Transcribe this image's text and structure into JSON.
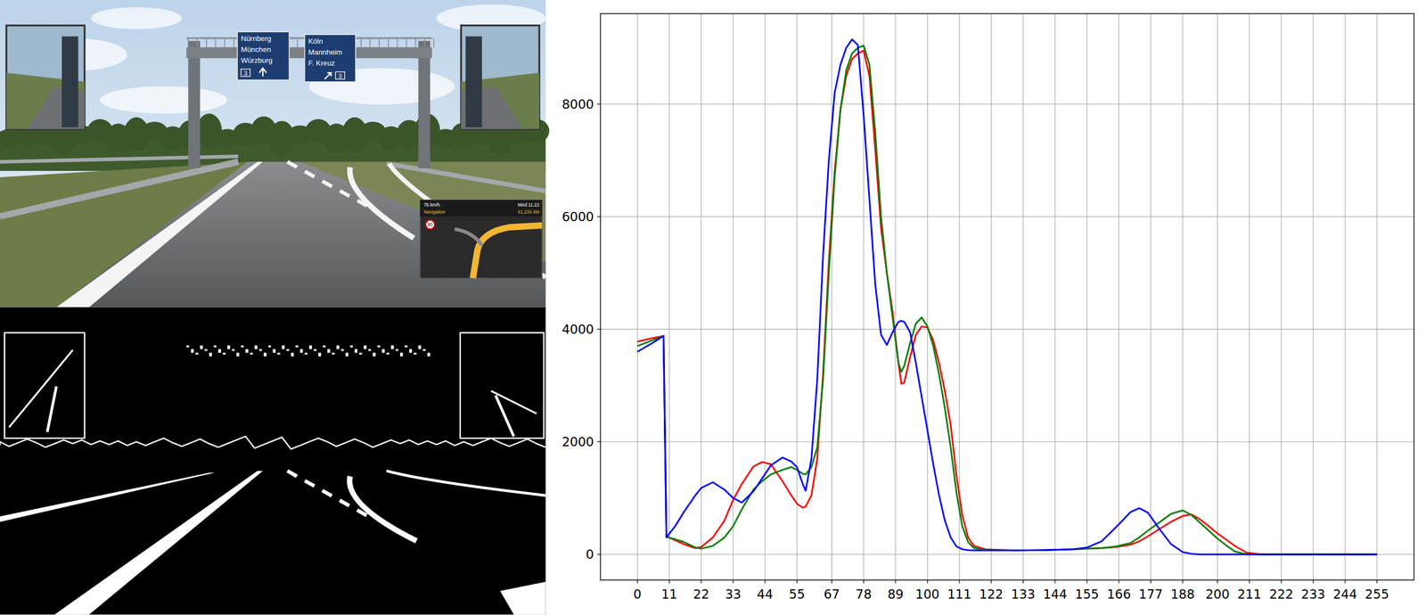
{
  "screenshot": {
    "signs": [
      {
        "lines": [
          "Nürnberg",
          "München",
          "Würzburg"
        ],
        "exit": "3"
      },
      {
        "lines": [
          "Köln",
          "Mannheim",
          "F. Kreuz"
        ],
        "exit": "3"
      }
    ],
    "hud": {
      "speed": "76 km/h",
      "time": "Wed 11:22",
      "title": "Navigation",
      "money": "€1,234.4M",
      "limit": "80"
    }
  },
  "chart_data": {
    "type": "line",
    "x": [
      0,
      5,
      9,
      10,
      13,
      16,
      20,
      22,
      26,
      30,
      33,
      36,
      40,
      43,
      46,
      50,
      53,
      55,
      57,
      58,
      60,
      62,
      64,
      66,
      68,
      70,
      72,
      74,
      76,
      78,
      80,
      82,
      84,
      86,
      88,
      90,
      91,
      92,
      94,
      96,
      98,
      100,
      102,
      104,
      106,
      108,
      110,
      112,
      114,
      116,
      120,
      130,
      140,
      150,
      155,
      160,
      165,
      170,
      173,
      176,
      180,
      184,
      188,
      191,
      194,
      197,
      200,
      203,
      206,
      210,
      215,
      220,
      240,
      255
    ],
    "series": [
      {
        "color": "#ff0000",
        "values": [
          3780,
          3840,
          3880,
          320,
          250,
          180,
          110,
          130,
          300,
          600,
          970,
          1250,
          1560,
          1640,
          1600,
          1300,
          1050,
          900,
          830,
          850,
          1050,
          1700,
          3200,
          5200,
          6800,
          7900,
          8500,
          8800,
          8900,
          8950,
          8500,
          7200,
          5800,
          5000,
          4300,
          3400,
          3030,
          3050,
          3500,
          3900,
          4050,
          4030,
          3800,
          3400,
          2900,
          2300,
          1400,
          700,
          300,
          150,
          90,
          70,
          75,
          90,
          100,
          110,
          130,
          170,
          230,
          320,
          450,
          580,
          680,
          710,
          620,
          500,
          370,
          260,
          150,
          30,
          0,
          0,
          0,
          0
        ]
      },
      {
        "color": "#008000",
        "values": [
          3700,
          3800,
          3880,
          310,
          270,
          220,
          120,
          100,
          150,
          300,
          500,
          800,
          1150,
          1300,
          1420,
          1500,
          1550,
          1500,
          1430,
          1420,
          1550,
          1900,
          3100,
          5000,
          6700,
          7900,
          8600,
          8900,
          9000,
          9040,
          8700,
          7500,
          6000,
          5000,
          4200,
          3400,
          3240,
          3350,
          3750,
          4100,
          4210,
          4050,
          3700,
          3200,
          2600,
          1900,
          1100,
          500,
          220,
          110,
          80,
          70,
          75,
          90,
          100,
          110,
          140,
          200,
          300,
          420,
          570,
          720,
          780,
          700,
          560,
          420,
          280,
          160,
          50,
          0,
          0,
          0,
          0,
          0
        ]
      },
      {
        "color": "#0000ff",
        "values": [
          3600,
          3750,
          3880,
          300,
          500,
          750,
          1050,
          1180,
          1280,
          1150,
          1000,
          920,
          1120,
          1350,
          1580,
          1720,
          1650,
          1550,
          1250,
          1130,
          1700,
          3100,
          5300,
          7000,
          8200,
          8700,
          9000,
          9150,
          9050,
          7800,
          6300,
          4800,
          3900,
          3720,
          3950,
          4130,
          4150,
          4130,
          3950,
          3400,
          2800,
          2200,
          1600,
          1050,
          600,
          300,
          140,
          90,
          75,
          70,
          70,
          70,
          75,
          90,
          120,
          230,
          480,
          750,
          820,
          740,
          450,
          180,
          40,
          10,
          0,
          0,
          0,
          0,
          0,
          0,
          0,
          0,
          0,
          0
        ]
      }
    ],
    "xlim": [
      -12.75,
      267.75
    ],
    "ylim": [
      -457,
      9607
    ],
    "xticks": [
      0,
      11,
      22,
      33,
      44,
      55,
      67,
      78,
      89,
      100,
      111,
      122,
      133,
      144,
      155,
      166,
      177,
      188,
      200,
      211,
      222,
      233,
      244,
      255
    ],
    "yticks": [
      0,
      2000,
      4000,
      6000,
      8000
    ],
    "grid": true
  }
}
